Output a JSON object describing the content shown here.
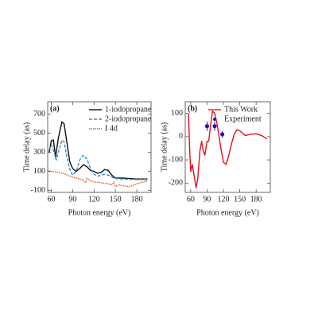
{
  "chart_data": [
    {
      "type": "line",
      "panel_label": "(a)",
      "xlabel": "Photon energy (eV)",
      "ylabel": "Time delay (as)",
      "xlim": [
        55,
        200
      ],
      "ylim": [
        -120,
        830
      ],
      "xticks": [
        60,
        90,
        120,
        150,
        180
      ],
      "yticks": [
        -100,
        100,
        300,
        500,
        700
      ],
      "legend": "upper right",
      "series": [
        {
          "name": "1-iodopropane",
          "color": "#111111",
          "style": "solid",
          "x": [
            57,
            60,
            63,
            66,
            70,
            75,
            78,
            82,
            86,
            90,
            95,
            100,
            105,
            110,
            115,
            120,
            125,
            130,
            135,
            140,
            145,
            150,
            160,
            170,
            180,
            195
          ],
          "values": [
            300,
            420,
            430,
            250,
            450,
            620,
            600,
            400,
            200,
            130,
            100,
            130,
            170,
            150,
            110,
            100,
            80,
            90,
            120,
            110,
            60,
            30,
            30,
            25,
            20,
            20
          ]
        },
        {
          "name": "2-iodopropane",
          "color": "#2b8fd6",
          "style": "dashed",
          "x": [
            57,
            60,
            64,
            67,
            70,
            75,
            78,
            82,
            86,
            90,
            95,
            100,
            105,
            110,
            115,
            120,
            125,
            130,
            135,
            140,
            145,
            150,
            160,
            180,
            195
          ],
          "values": [
            330,
            380,
            300,
            220,
            300,
            430,
            410,
            250,
            120,
            60,
            100,
            220,
            270,
            230,
            130,
            70,
            50,
            60,
            70,
            60,
            40,
            25,
            20,
            15,
            15
          ]
        },
        {
          "name": "I 4d",
          "color": "#e0641e",
          "style": "dotted",
          "x": [
            57,
            60,
            70,
            80,
            90,
            100,
            105,
            108,
            110,
            115,
            120,
            130,
            140,
            145,
            148,
            150,
            155,
            160,
            170,
            180,
            190,
            195
          ],
          "values": [
            110,
            100,
            90,
            70,
            40,
            20,
            10,
            -20,
            30,
            0,
            -10,
            -20,
            -30,
            -40,
            -10,
            -60,
            -40,
            -50,
            -60,
            -30,
            -10,
            0
          ]
        }
      ]
    },
    {
      "type": "line",
      "panel_label": "(b)",
      "xlabel": "Photon energy (eV)",
      "ylabel": "Time delay (as)",
      "xlim": [
        50,
        206
      ],
      "ylim": [
        -240,
        150
      ],
      "xticks": [
        60,
        90,
        120,
        150,
        180
      ],
      "yticks": [
        -200,
        -100,
        0,
        100
      ],
      "legend": "upper right",
      "series": [
        {
          "name": "This Work",
          "color": "#e3101a",
          "style": "solid",
          "x": [
            56,
            58,
            60,
            63,
            67,
            70,
            73,
            77,
            80,
            83,
            86,
            90,
            93,
            96,
            100,
            104,
            108,
            112,
            116,
            120,
            125,
            130,
            135,
            140,
            145,
            150,
            160,
            170,
            180,
            190,
            200
          ],
          "values": [
            100,
            -50,
            -150,
            -120,
            -180,
            -220,
            -180,
            -60,
            -20,
            -60,
            -80,
            -20,
            -20,
            40,
            110,
            100,
            60,
            0,
            -60,
            -110,
            -120,
            -80,
            -30,
            10,
            30,
            25,
            5,
            10,
            12,
            5,
            -10
          ]
        },
        {
          "name": "Experiment",
          "color": "#1a1aa8",
          "kind": "points",
          "x": [
            90,
            104,
            118
          ],
          "values": [
            45,
            45,
            10
          ],
          "errors": [
            20,
            20,
            15
          ]
        }
      ]
    }
  ]
}
